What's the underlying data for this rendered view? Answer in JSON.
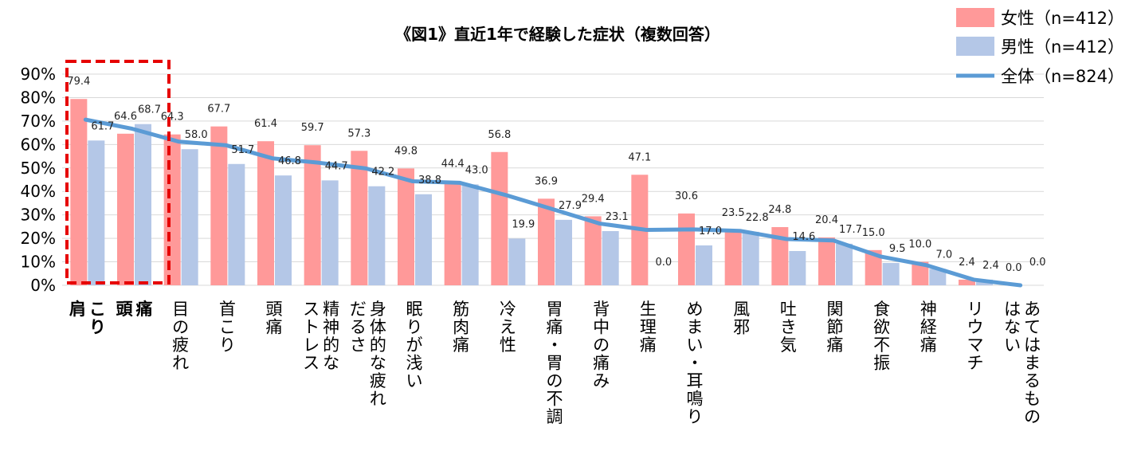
{
  "chart_data": {
    "type": "bar",
    "title": "《図1》直近1年で経験した症状（複数回答）",
    "categories": [
      "肩こり",
      "頭痛",
      "目の疲れ",
      "首こり",
      "頭痛",
      "精神的なストレス",
      "身体的な疲れだるさ",
      "眠りが浅い",
      "筋肉痛",
      "冷え性",
      "胃痛・胃の不調",
      "背中の痛み",
      "生理痛",
      "めまい・耳鳴り",
      "風邪",
      "吐き気",
      "関節痛",
      "食欲不振",
      "神経痛",
      "リウマチ",
      "あてはまるものはない"
    ],
    "category_lines": [
      [
        "肩",
        "こり"
      ],
      [
        "頭",
        "痛"
      ],
      [
        "目の疲れ"
      ],
      [
        "首こり"
      ],
      [
        "頭痛"
      ],
      [
        "ストレス",
        "精神的な"
      ],
      [
        "だるさ",
        "身体的な疲れ"
      ],
      [
        "眠りが浅い"
      ],
      [
        "筋肉痛"
      ],
      [
        "冷え性"
      ],
      [
        "胃痛・胃の不調"
      ],
      [
        "背中の痛み"
      ],
      [
        "生理痛"
      ],
      [
        "めまい・耳鳴り"
      ],
      [
        "風邪"
      ],
      [
        "吐き気"
      ],
      [
        "関節痛"
      ],
      [
        "食欲不振"
      ],
      [
        "神経痛"
      ],
      [
        "リウマチ"
      ],
      [
        "はない",
        "あてはまるもの"
      ]
    ],
    "series": [
      {
        "name": "女性（n=412）",
        "kind": "bar",
        "color": "#ff9999",
        "values": [
          79.4,
          64.6,
          64.3,
          67.7,
          61.4,
          59.7,
          57.3,
          49.8,
          44.4,
          56.8,
          36.9,
          29.4,
          47.1,
          30.6,
          23.5,
          24.8,
          20.4,
          15.0,
          10.0,
          2.4,
          0.0
        ],
        "labels": [
          "79.4",
          "64.6",
          "64.3",
          "67.7",
          "61.4",
          "59.7",
          "57.3",
          "49.8",
          "44.4",
          "56.8",
          "36.9",
          "29.4",
          "47.1",
          "30.6",
          "23.5",
          "24.8",
          "20.4",
          "15.0",
          "10.0",
          "2.4",
          "0.0"
        ]
      },
      {
        "name": "男性（n=412）",
        "kind": "bar",
        "color": "#b4c7e7",
        "values": [
          61.7,
          68.7,
          58.0,
          51.7,
          46.8,
          44.7,
          42.2,
          38.8,
          43.0,
          19.9,
          27.9,
          23.1,
          0.0,
          17.0,
          22.8,
          14.6,
          17.7,
          9.5,
          7.0,
          2.4,
          0.0
        ],
        "labels": [
          "61.7",
          "68.7",
          "58.0",
          "51.7",
          "46.8",
          "44.7",
          "42.2",
          "38.8",
          "43.0",
          "19.9",
          "27.9",
          "23.1",
          "0.0",
          "17.0",
          "22.8",
          "14.6",
          "17.7",
          "9.5",
          "7.0",
          "2.4",
          "0.0"
        ]
      },
      {
        "name": "全体（n=824）",
        "kind": "line",
        "color": "#5b9bd5",
        "values": [
          70.6,
          66.7,
          61.2,
          59.7,
          54.1,
          52.2,
          49.8,
          44.3,
          43.7,
          38.4,
          32.4,
          26.3,
          23.6,
          23.8,
          23.2,
          19.7,
          19.1,
          12.3,
          8.5,
          2.4,
          0.0
        ]
      }
    ],
    "yticks": [
      "0%",
      "10%",
      "20%",
      "30%",
      "40%",
      "50%",
      "60%",
      "70%",
      "80%",
      "90%"
    ],
    "ylim": [
      0,
      90
    ],
    "ytick_values": [
      0,
      10,
      20,
      30,
      40,
      50,
      60,
      70,
      80,
      90
    ],
    "grid": true,
    "legend": "top-right",
    "highlight_box": {
      "categories": [
        "肩こり",
        "頭痛"
      ],
      "color": "#e60000",
      "style": "dashed"
    }
  }
}
